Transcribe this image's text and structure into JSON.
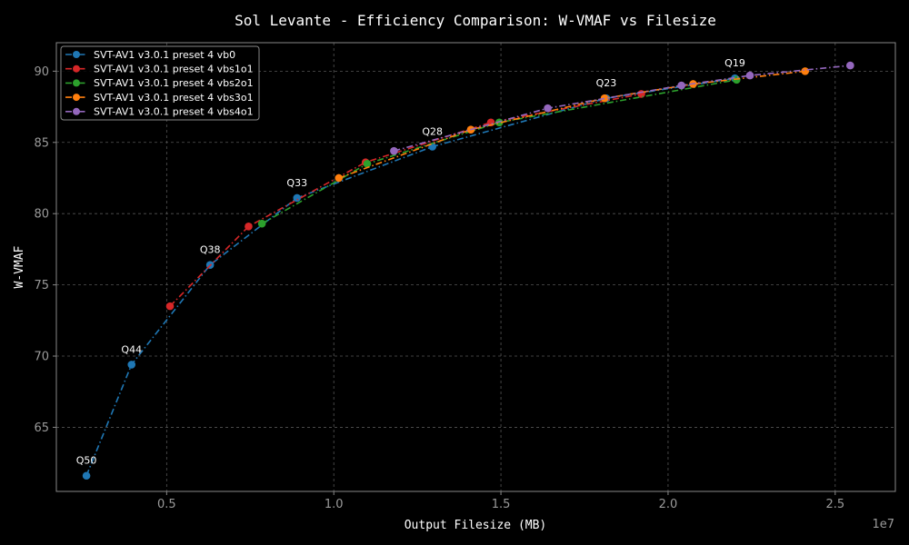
{
  "chart_data": {
    "type": "line",
    "title": "Sol Levante - Efficiency Comparison: W-VMAF vs Filesize",
    "xlabel": "Output Filesize (MB)",
    "ylabel": "W-VMAF",
    "x_exponent_label": "1e7",
    "xlim": [
      1700000,
      26800000
    ],
    "ylim": [
      60.5,
      92.0
    ],
    "xticks": [
      5000000,
      10000000,
      15000000,
      20000000,
      25000000
    ],
    "xtick_labels": [
      "0.5",
      "1.0",
      "1.5",
      "2.0",
      "2.5"
    ],
    "yticks": [
      65,
      70,
      75,
      80,
      85,
      90
    ],
    "ytick_labels": [
      "65",
      "70",
      "75",
      "80",
      "85",
      "90"
    ],
    "grid": true,
    "legend_position": "upper-left",
    "colors": {
      "background": "#000000",
      "axes_edge": "#888888",
      "grid": "#555555",
      "text": "#ffffff",
      "tick_text": "#9a9a9a"
    },
    "series": [
      {
        "name": "SVT-AV1 v3.0.1 preset 4 vb0",
        "color": "#1f77b4",
        "x": [
          2600000,
          3950000,
          6300000,
          8900000,
          12950000,
          18150000,
          22000000
        ],
        "y": [
          61.6,
          69.4,
          76.4,
          81.1,
          84.7,
          88.1,
          89.5
        ]
      },
      {
        "name": "SVT-AV1 v3.0.1 preset 4 vbs1o1",
        "color": "#d62728",
        "x": [
          5100000,
          7450000,
          10950000,
          14700000,
          19200000
        ],
        "y": [
          73.5,
          79.1,
          83.6,
          86.4,
          88.4
        ]
      },
      {
        "name": "SVT-AV1 v3.0.1 preset 4 vbs2o1",
        "color": "#2ca02c",
        "x": [
          7850000,
          11000000,
          14950000,
          22050000
        ],
        "y": [
          79.3,
          83.5,
          86.4,
          89.4
        ]
      },
      {
        "name": "SVT-AV1 v3.0.1 preset 4 vbs3o1",
        "color": "#ff7f0e",
        "x": [
          10150000,
          14100000,
          18100000,
          20750000,
          24100000
        ],
        "y": [
          82.5,
          85.9,
          88.1,
          89.1,
          90.0
        ]
      },
      {
        "name": "SVT-AV1 v3.0.1 preset 4 vbs4o1",
        "color": "#9467bd",
        "x": [
          11800000,
          16400000,
          20400000,
          22450000,
          25450000
        ],
        "y": [
          84.4,
          87.4,
          89.0,
          89.7,
          90.4
        ]
      }
    ],
    "annotations": [
      {
        "text": "Q50",
        "x": 2600000,
        "y": 61.6
      },
      {
        "text": "Q44",
        "x": 3950000,
        "y": 69.4
      },
      {
        "text": "Q38",
        "x": 6300000,
        "y": 76.4
      },
      {
        "text": "Q33",
        "x": 8900000,
        "y": 81.1
      },
      {
        "text": "Q28",
        "x": 12950000,
        "y": 84.7
      },
      {
        "text": "Q23",
        "x": 18150000,
        "y": 88.1
      },
      {
        "text": "Q19",
        "x": 22000000,
        "y": 89.5
      }
    ]
  }
}
